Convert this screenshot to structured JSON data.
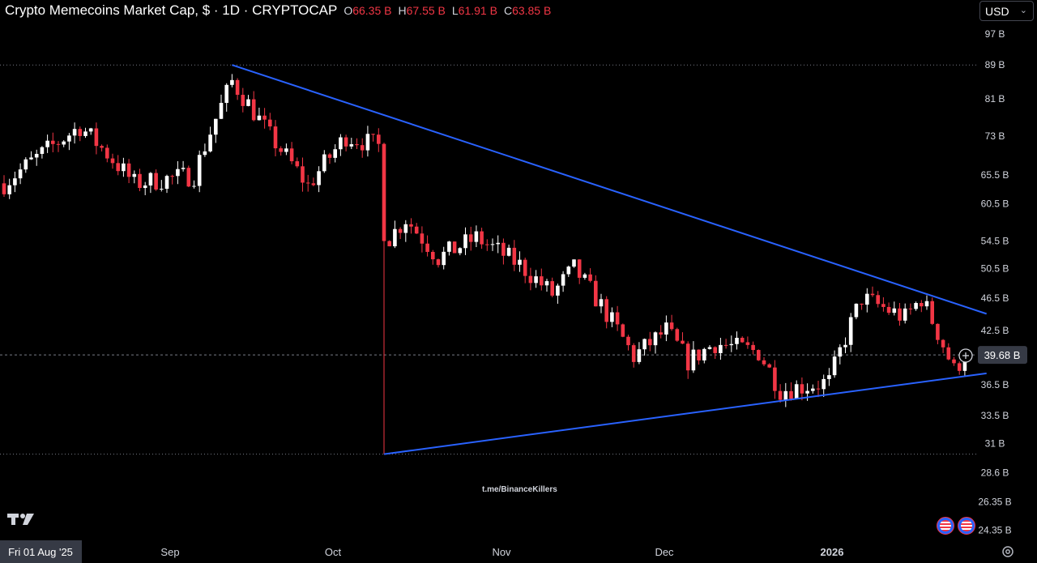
{
  "header": {
    "title": "Crypto Memecoins Market Cap, $ · 1D · CRYPTOCAP",
    "ohlc": [
      {
        "key": "O",
        "value": "66.35 B"
      },
      {
        "key": "H",
        "value": "67.55 B"
      },
      {
        "key": "L",
        "value": "61.91 B"
      },
      {
        "key": "C",
        "value": "63.85 B"
      }
    ]
  },
  "currency": {
    "label": "USD",
    "icon": "chevron-down-icon"
  },
  "watermark": "t.me/BinanceKillers",
  "colors": {
    "up": "#ffffff",
    "down": "#f23645",
    "trendline": "#2962ff",
    "price_tag": "#363a45"
  },
  "chart_data": {
    "type": "candlestick",
    "title": "Crypto Memecoins Market Cap, $ · 1D · CRYPTOCAP",
    "scale": "log",
    "x_labels": [
      "Fri 01 Aug '25",
      "Sep",
      "Oct",
      "Nov",
      "Dec",
      "2026"
    ],
    "y_tick_labels": [
      "97 B",
      "89 B",
      "81 B",
      "73 B",
      "65.5 B",
      "60.5 B",
      "54.5 B",
      "50.5 B",
      "46.5 B",
      "42.5 B",
      "39.68 B",
      "36.5 B",
      "33.5 B",
      "31 B",
      "28.6 B",
      "26.35 B",
      "24.35 B"
    ],
    "y_ticks": [
      97,
      89,
      81,
      73,
      65.5,
      60.5,
      54.5,
      50.5,
      46.5,
      42.5,
      36.5,
      33.5,
      31,
      28.6,
      26.35,
      24.35
    ],
    "ylim": [
      24.0,
      99.0
    ],
    "last_price": 39.68,
    "last_price_label": "39.68 B",
    "horizontal_levels": [
      89.0,
      30.1
    ],
    "trendlines": [
      {
        "start": {
          "date": "2025-09-12",
          "value": 89.0
        },
        "end": {
          "date": "2026-01-29",
          "value": 44.5
        }
      },
      {
        "start": {
          "date": "2025-10-10",
          "value": 30.1
        },
        "end": {
          "date": "2026-01-29",
          "value": 37.7
        }
      }
    ],
    "anchors": [
      {
        "date": "2025-08-01",
        "value": 64.0
      },
      {
        "date": "2025-08-15",
        "value": 75.0
      },
      {
        "date": "2025-08-25",
        "value": 64.0
      },
      {
        "date": "2025-09-05",
        "value": 65.5
      },
      {
        "date": "2025-09-12",
        "value": 85.0
      },
      {
        "date": "2025-09-19",
        "value": 73.0
      },
      {
        "date": "2025-09-26",
        "value": 63.5
      },
      {
        "date": "2025-10-03",
        "value": 73.0
      },
      {
        "date": "2025-10-09",
        "value": 71.0
      },
      {
        "date": "2025-10-10",
        "value": 54.0
      },
      {
        "date": "2025-10-14",
        "value": 58.0
      },
      {
        "date": "2025-10-20",
        "value": 52.0
      },
      {
        "date": "2025-10-27",
        "value": 55.0
      },
      {
        "date": "2025-11-04",
        "value": 51.0
      },
      {
        "date": "2025-11-10",
        "value": 47.0
      },
      {
        "date": "2025-11-14",
        "value": 50.5
      },
      {
        "date": "2025-11-22",
        "value": 42.5
      },
      {
        "date": "2025-11-25",
        "value": 39.5
      },
      {
        "date": "2025-12-01",
        "value": 42.5
      },
      {
        "date": "2025-12-05",
        "value": 39.0
      },
      {
        "date": "2025-12-10",
        "value": 41.0
      },
      {
        "date": "2025-12-18",
        "value": 40.0
      },
      {
        "date": "2025-12-22",
        "value": 36.0
      },
      {
        "date": "2025-12-31",
        "value": 36.8
      },
      {
        "date": "2026-01-06",
        "value": 46.5
      },
      {
        "date": "2026-01-14",
        "value": 44.0
      },
      {
        "date": "2026-01-17",
        "value": 46.5
      },
      {
        "date": "2026-01-23",
        "value": 38.0
      },
      {
        "date": "2026-01-25",
        "value": 39.68
      }
    ]
  }
}
